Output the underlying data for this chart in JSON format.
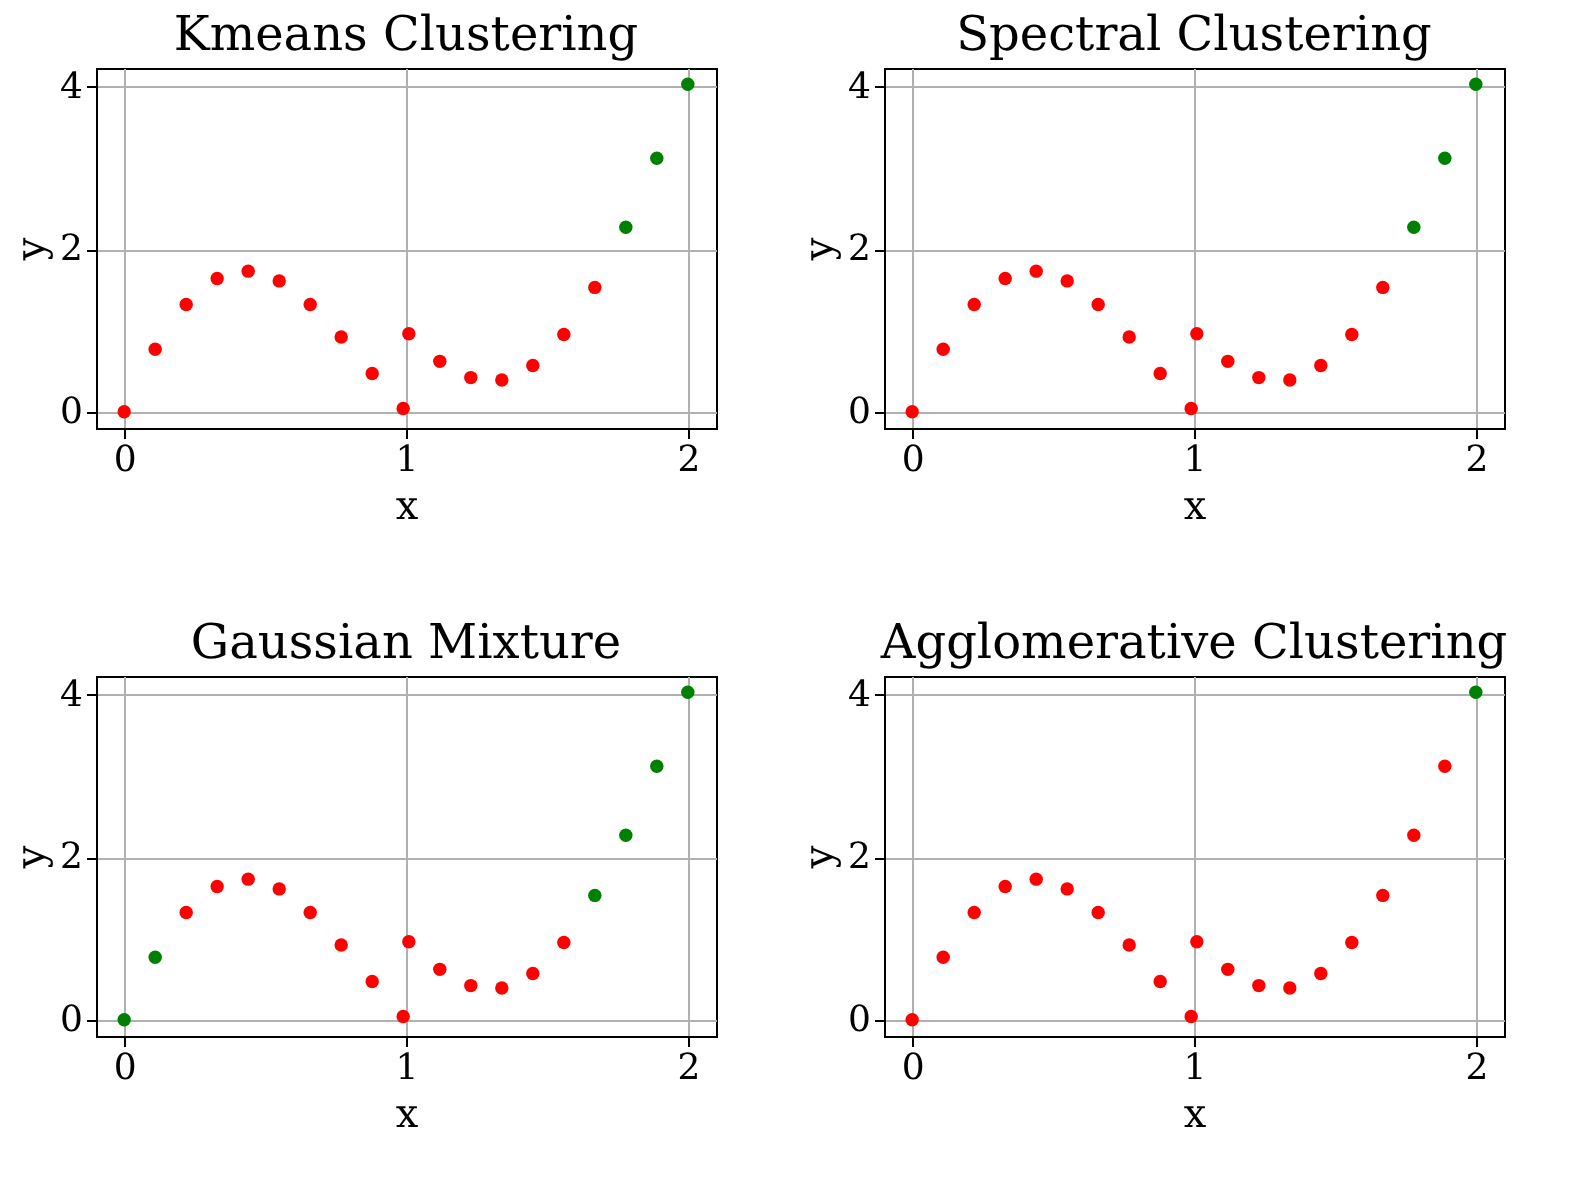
{
  "chart_data": [
    {
      "type": "scatter",
      "title": "Kmeans Clustering",
      "xlabel": "x",
      "ylabel": "y",
      "x": [
        0,
        0.11,
        0.22,
        0.33,
        0.44,
        0.55,
        0.66,
        0.77,
        0.88,
        0.99,
        1.01,
        1.12,
        1.23,
        1.34,
        1.45,
        1.56,
        1.67,
        1.78,
        1.89,
        2.0
      ],
      "values": [
        0,
        0.77,
        1.32,
        1.64,
        1.73,
        1.61,
        1.32,
        0.92,
        0.47,
        0.04,
        0.96,
        0.62,
        0.42,
        0.39,
        0.57,
        0.95,
        1.53,
        2.27,
        3.12,
        4.03
      ],
      "colors": [
        "#ff0000",
        "#ff0000",
        "#ff0000",
        "#ff0000",
        "#ff0000",
        "#ff0000",
        "#ff0000",
        "#ff0000",
        "#ff0000",
        "#ff0000",
        "#ff0000",
        "#ff0000",
        "#ff0000",
        "#ff0000",
        "#ff0000",
        "#ff0000",
        "#ff0000",
        "#008000",
        "#008000",
        "#008000"
      ],
      "xlim": [
        -0.1,
        2.1
      ],
      "ylim": [
        -0.2,
        4.23
      ],
      "xticks": [
        0,
        1,
        2
      ],
      "yticks": [
        0,
        2,
        4
      ],
      "grid": true
    },
    {
      "type": "scatter",
      "title": "Spectral Clustering",
      "xlabel": "x",
      "ylabel": "y",
      "x": [
        0,
        0.11,
        0.22,
        0.33,
        0.44,
        0.55,
        0.66,
        0.77,
        0.88,
        0.99,
        1.01,
        1.12,
        1.23,
        1.34,
        1.45,
        1.56,
        1.67,
        1.78,
        1.89,
        2.0
      ],
      "values": [
        0,
        0.77,
        1.32,
        1.64,
        1.73,
        1.61,
        1.32,
        0.92,
        0.47,
        0.04,
        0.96,
        0.62,
        0.42,
        0.39,
        0.57,
        0.95,
        1.53,
        2.27,
        3.12,
        4.03
      ],
      "colors": [
        "#ff0000",
        "#ff0000",
        "#ff0000",
        "#ff0000",
        "#ff0000",
        "#ff0000",
        "#ff0000",
        "#ff0000",
        "#ff0000",
        "#ff0000",
        "#ff0000",
        "#ff0000",
        "#ff0000",
        "#ff0000",
        "#ff0000",
        "#ff0000",
        "#ff0000",
        "#008000",
        "#008000",
        "#008000"
      ],
      "xlim": [
        -0.1,
        2.1
      ],
      "ylim": [
        -0.2,
        4.23
      ],
      "xticks": [
        0,
        1,
        2
      ],
      "yticks": [
        0,
        2,
        4
      ],
      "grid": true
    },
    {
      "type": "scatter",
      "title": "Gaussian Mixture",
      "xlabel": "x",
      "ylabel": "y",
      "x": [
        0,
        0.11,
        0.22,
        0.33,
        0.44,
        0.55,
        0.66,
        0.77,
        0.88,
        0.99,
        1.01,
        1.12,
        1.23,
        1.34,
        1.45,
        1.56,
        1.67,
        1.78,
        1.89,
        2.0
      ],
      "values": [
        0,
        0.77,
        1.32,
        1.64,
        1.73,
        1.61,
        1.32,
        0.92,
        0.47,
        0.04,
        0.96,
        0.62,
        0.42,
        0.39,
        0.57,
        0.95,
        1.53,
        2.27,
        3.12,
        4.03
      ],
      "colors": [
        "#008000",
        "#008000",
        "#ff0000",
        "#ff0000",
        "#ff0000",
        "#ff0000",
        "#ff0000",
        "#ff0000",
        "#ff0000",
        "#ff0000",
        "#ff0000",
        "#ff0000",
        "#ff0000",
        "#ff0000",
        "#ff0000",
        "#ff0000",
        "#008000",
        "#008000",
        "#008000",
        "#008000"
      ],
      "xlim": [
        -0.1,
        2.1
      ],
      "ylim": [
        -0.2,
        4.23
      ],
      "xticks": [
        0,
        1,
        2
      ],
      "yticks": [
        0,
        2,
        4
      ],
      "grid": true
    },
    {
      "type": "scatter",
      "title": "Agglomerative Clustering",
      "xlabel": "x",
      "ylabel": "y",
      "x": [
        0,
        0.11,
        0.22,
        0.33,
        0.44,
        0.55,
        0.66,
        0.77,
        0.88,
        0.99,
        1.01,
        1.12,
        1.23,
        1.34,
        1.45,
        1.56,
        1.67,
        1.78,
        1.89,
        2.0
      ],
      "values": [
        0,
        0.77,
        1.32,
        1.64,
        1.73,
        1.61,
        1.32,
        0.92,
        0.47,
        0.04,
        0.96,
        0.62,
        0.42,
        0.39,
        0.57,
        0.95,
        1.53,
        2.27,
        3.12,
        4.03
      ],
      "colors": [
        "#ff0000",
        "#ff0000",
        "#ff0000",
        "#ff0000",
        "#ff0000",
        "#ff0000",
        "#ff0000",
        "#ff0000",
        "#ff0000",
        "#ff0000",
        "#ff0000",
        "#ff0000",
        "#ff0000",
        "#ff0000",
        "#ff0000",
        "#ff0000",
        "#ff0000",
        "#ff0000",
        "#ff0000",
        "#008000"
      ],
      "xlim": [
        -0.1,
        2.1
      ],
      "ylim": [
        -0.2,
        4.23
      ],
      "xticks": [
        0,
        1,
        2
      ],
      "yticks": [
        0,
        2,
        4
      ],
      "grid": true
    }
  ]
}
